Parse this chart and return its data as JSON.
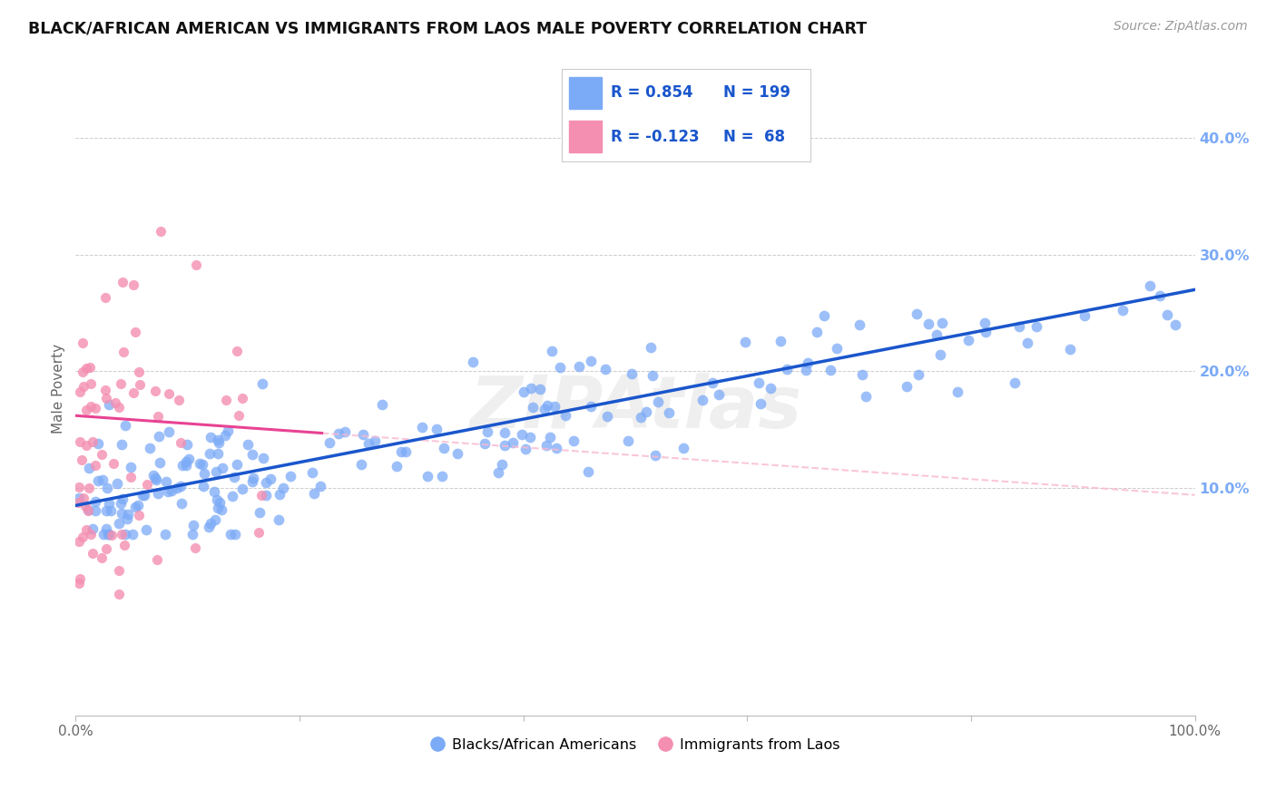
{
  "title": "BLACK/AFRICAN AMERICAN VS IMMIGRANTS FROM LAOS MALE POVERTY CORRELATION CHART",
  "source": "Source: ZipAtlas.com",
  "ylabel": "Male Poverty",
  "yticks": [
    "10.0%",
    "20.0%",
    "30.0%",
    "40.0%"
  ],
  "ytick_vals": [
    0.1,
    0.2,
    0.3,
    0.4
  ],
  "blue_R": "0.854",
  "blue_N": "199",
  "pink_R": "-0.123",
  "pink_N": "68",
  "blue_color": "#7baaf7",
  "pink_color": "#f48fb1",
  "blue_line_color": "#1a56cc",
  "pink_line_solid_color": "#e84393",
  "pink_line_dash_color": "#f9b8d0",
  "watermark": "ZIPAtlas",
  "xlim": [
    0.0,
    1.0
  ],
  "ylim": [
    -0.095,
    0.465
  ],
  "background_color": "#ffffff",
  "grid_color": "#cccccc",
  "blue_intercept": 0.085,
  "blue_slope": 0.185,
  "pink_intercept": 0.162,
  "pink_slope": -0.068
}
